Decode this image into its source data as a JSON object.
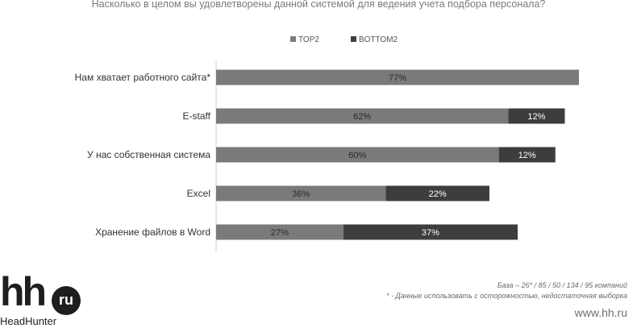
{
  "header": {
    "title": "Насколько в целом вы удовлетворены данной системой для ведения учета подбора персонала?"
  },
  "colors": {
    "top2": "#7a7a7a",
    "bottom2": "#3d3d3d",
    "axis": "#cfcfcf"
  },
  "chart_data": {
    "type": "bar",
    "orientation": "horizontal",
    "stacked": true,
    "title": "Насколько в целом вы удовлетворены данной системой для ведения учета подбора персонала?",
    "categories": [
      "Нам хватает работного сайта*",
      "E-staff",
      "У нас собственная система",
      "Excel",
      "Хранение файлов в Word"
    ],
    "series": [
      {
        "name": "TOP2",
        "values": [
          77,
          62,
          60,
          36,
          27
        ],
        "labels": [
          "77%",
          "62%",
          "60%",
          "36%",
          "27%"
        ]
      },
      {
        "name": "BOTTOM2",
        "values": [
          0,
          12,
          12,
          22,
          37
        ],
        "labels": [
          "",
          "12%",
          "12%",
          "22%",
          "37%"
        ]
      }
    ],
    "xlim": [
      0,
      77
    ],
    "legend": "top-center",
    "grid": false
  },
  "footer": {
    "base_note": "База – 26* / 85 / 50 / 134 / 95  компаний",
    "caution_note": "* - Данные использовать с осторожностью, недостаточная выборка",
    "site": "www.hh.ru"
  },
  "logo": {
    "hh": "hh",
    "ru": "ru",
    "brand": "HeadHunter"
  }
}
